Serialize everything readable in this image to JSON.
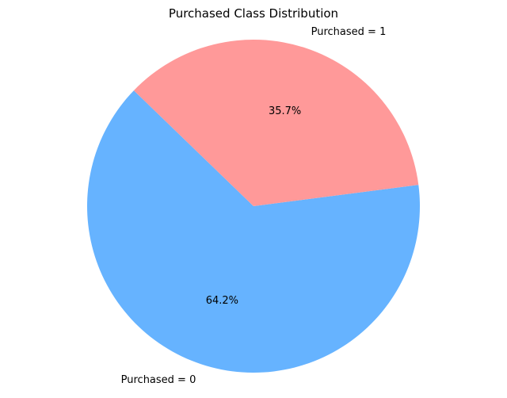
{
  "chart_data": {
    "type": "pie",
    "title": "Purchased Class Distribution",
    "slices": [
      {
        "label": "Purchased = 0",
        "value": 64.2,
        "pct_label": "64.2%",
        "color": "#66b3ff"
      },
      {
        "label": "Purchased = 1",
        "value": 35.7,
        "pct_label": "35.7%",
        "color": "#ff9999"
      }
    ],
    "legend": false
  }
}
